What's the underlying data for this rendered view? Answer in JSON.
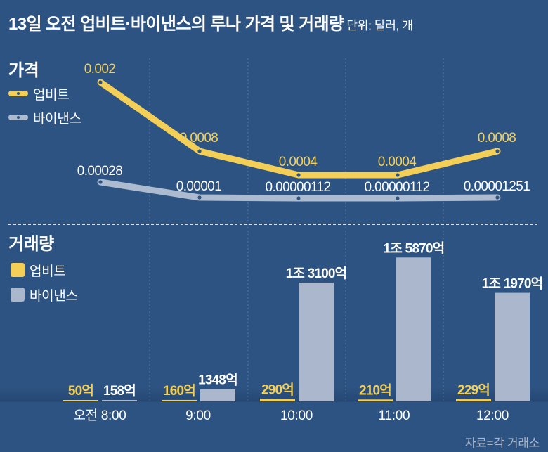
{
  "header": {
    "title": "13일 오전 업비트·바이낸스의 루나 가격 및 거래량",
    "unit": "단위: 달러, 개"
  },
  "price_section": {
    "title": "가격",
    "legend": [
      {
        "label": "업비트",
        "color": "#f3cf58"
      },
      {
        "label": "바이낸스",
        "color": "#adbbd1"
      }
    ]
  },
  "volume_section": {
    "title": "거래량",
    "legend": [
      {
        "label": "업비트",
        "color": "#f3cf58"
      },
      {
        "label": "바이낸스",
        "color": "#aab7cc"
      }
    ]
  },
  "source": "자료=각 거래소",
  "chart_data": [
    {
      "type": "line",
      "title": "가격",
      "unit": "달러",
      "categories": [
        "오전 8:00",
        "9:00",
        "10:00",
        "11:00",
        "12:00"
      ],
      "grid": true,
      "legend": "top-left",
      "series": [
        {
          "name": "업비트",
          "color": "#f3cf58",
          "values": [
            0.002,
            0.0008,
            0.0004,
            0.0004,
            0.0008
          ],
          "labels": [
            "0.002",
            "0.0008",
            "0.0004",
            "0.0004",
            "0.0008"
          ]
        },
        {
          "name": "바이낸스",
          "color": "#adbbd1",
          "values": [
            0.00028,
            1e-05,
            1.12e-06,
            1.12e-06,
            1.251e-05
          ],
          "labels": [
            "0.00028",
            "0.00001",
            "0.00000112",
            "0.00000112",
            "0.00001251"
          ]
        }
      ]
    },
    {
      "type": "bar",
      "title": "거래량",
      "unit": "억 개",
      "categories": [
        "오전 8:00",
        "9:00",
        "10:00",
        "11:00",
        "12:00"
      ],
      "grid": true,
      "legend": "top-left",
      "series": [
        {
          "name": "업비트",
          "color": "#f3cf58",
          "values": [
            50,
            160,
            290,
            210,
            229
          ],
          "labels": [
            "50억",
            "160억",
            "290억",
            "210억",
            "229억"
          ]
        },
        {
          "name": "바이낸스",
          "color": "#aab7cc",
          "values": [
            158,
            1348,
            13100,
            15870,
            11970
          ],
          "labels": [
            "158억",
            "1348억",
            "1조 3100억",
            "1조 5870억",
            "1조 1970억"
          ]
        }
      ]
    }
  ]
}
